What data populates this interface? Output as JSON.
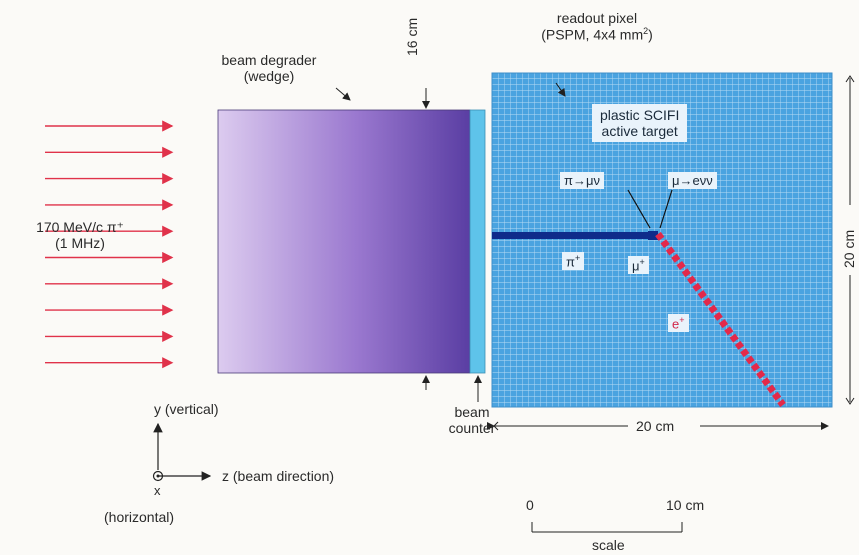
{
  "beam": {
    "label_line1": "170 MeV/c π⁺",
    "label_line2": "(1 MHz)",
    "arrow_count": 10
  },
  "degrader": {
    "label_line1": "beam degrader",
    "label_line2": "(wedge)",
    "thickness": "16 cm"
  },
  "counter": {
    "label_line1": "beam",
    "label_line2": "counter"
  },
  "target": {
    "readout_line1": "readout pixel",
    "readout_line2_prefix": "(PSPM, 4x4 mm",
    "readout_line2_sup": "2",
    "readout_line2_suffix": ")",
    "active_line1": "plastic SCIFI",
    "active_line2": "active target",
    "width": "20 cm",
    "height": "20 cm"
  },
  "decays": {
    "pion_decay": "π→μν",
    "muon_decay": "μ→eνν",
    "pion": "π",
    "pion_charge": "+",
    "muon": "μ",
    "muon_charge": "+",
    "positron": "e",
    "positron_charge": "+"
  },
  "axes": {
    "y_label": "y (vertical)",
    "z_label": "z (beam direction)",
    "x_symbol": "x",
    "x_label": "(horizontal)"
  },
  "scale": {
    "zero": "0",
    "ten": "10 cm",
    "label": "scale"
  },
  "colors": {
    "beam_arrow": "#e0324a",
    "degrader_light": "#d9c7ee",
    "degrader_dark": "#5b3fa3",
    "counter": "#5ec3ea",
    "target_bg": "#4aa3e0",
    "grid": "#b8dcf5",
    "pion_track": "#0f2b8a",
    "positron_track": "#e3294a"
  }
}
